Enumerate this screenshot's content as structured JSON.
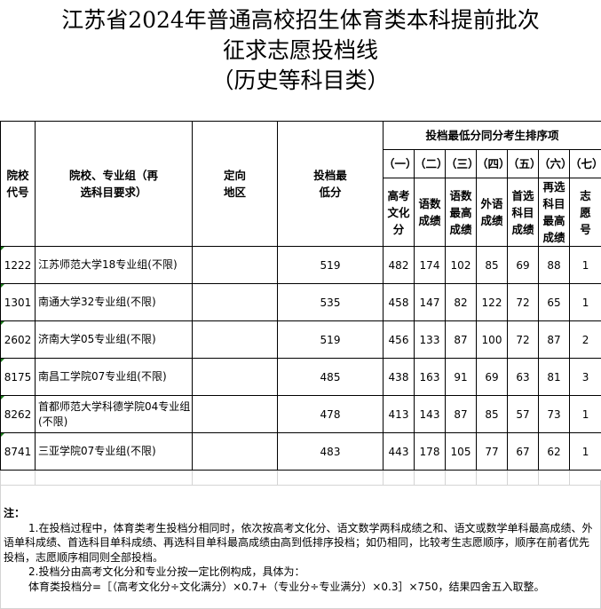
{
  "title": {
    "line1": "江苏省2024年普通高校招生体育类本科提前批次",
    "line2": "征求志愿投档线",
    "line3": "（历史等科目类）"
  },
  "headers": {
    "code": "院校代号",
    "group": "院校、专业组（再选科目要求）",
    "region": "定向地区",
    "min_score": "投档最低分",
    "tie_group": "投档最低分同分考生排序项",
    "ranks": [
      "（一）",
      "（二）",
      "（三）",
      "（四）",
      "（五）",
      "（六）",
      "（七）"
    ],
    "rank_items": [
      "高考文化分",
      "语数成绩",
      "语数最高成绩",
      "外语成绩",
      "首选科目成绩",
      "再选科目最高成绩",
      "志愿号"
    ]
  },
  "rows": [
    {
      "code": "1222",
      "name": "江苏师范大学18专业组(不限)",
      "region": "",
      "min": "519",
      "v": [
        "482",
        "174",
        "102",
        "85",
        "69",
        "88",
        "1"
      ]
    },
    {
      "code": "1301",
      "name": "南通大学32专业组(不限)",
      "region": "",
      "min": "535",
      "v": [
        "458",
        "147",
        "82",
        "122",
        "72",
        "65",
        "1"
      ]
    },
    {
      "code": "2602",
      "name": "济南大学05专业组(不限)",
      "region": "",
      "min": "519",
      "v": [
        "456",
        "133",
        "87",
        "100",
        "72",
        "87",
        "2"
      ]
    },
    {
      "code": "8175",
      "name": "南昌工学院07专业组(不限)",
      "region": "",
      "min": "485",
      "v": [
        "438",
        "163",
        "91",
        "69",
        "63",
        "81",
        "3"
      ]
    },
    {
      "code": "8262",
      "name": "首都师范大学科德学院04专业组(不限)",
      "region": "",
      "min": "478",
      "v": [
        "413",
        "143",
        "87",
        "85",
        "57",
        "73",
        "1"
      ]
    },
    {
      "code": "8741",
      "name": "三亚学院07专业组(不限)",
      "region": "",
      "min": "483",
      "v": [
        "443",
        "178",
        "105",
        "77",
        "67",
        "62",
        "1"
      ]
    }
  ],
  "notes": {
    "label": "注：",
    "p1": "1.在投档过程中，体育类考生投档分相同时，依次按高考文化分、语文数学两科成绩之和、语文或数学单科最高成绩、外语单科成绩、首选科目单科成绩、再选科目单科最高成绩由高到低排序投档；如仍相同，比较考生志愿顺序，顺序在前者优先投档，志愿顺序相同则全部投档。",
    "p2": "2.投档分由高考文化分和专业分按一定比例构成，具体为：",
    "formula": "体育类投档分=［（高考文化分÷文化满分）×0.7+（专业分÷专业满分）×0.3］×750，结果四舍五入取整。"
  }
}
